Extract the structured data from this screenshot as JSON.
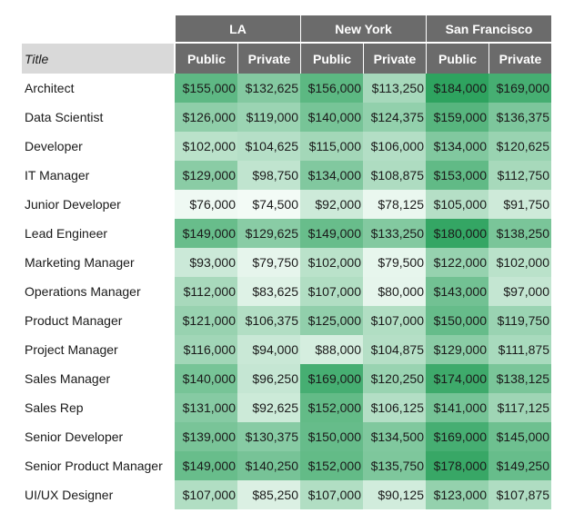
{
  "table": {
    "title_header": "Title",
    "cities": [
      "LA",
      "New York",
      "San Francisco"
    ],
    "sectors": [
      "Public",
      "Private"
    ]
  },
  "chart_data": {
    "type": "heatmap",
    "title": "",
    "row_header": "Title",
    "columns": [
      {
        "city": "LA",
        "sector": "Public"
      },
      {
        "city": "LA",
        "sector": "Private"
      },
      {
        "city": "New York",
        "sector": "Public"
      },
      {
        "city": "New York",
        "sector": "Private"
      },
      {
        "city": "San Francisco",
        "sector": "Public"
      },
      {
        "city": "San Francisco",
        "sector": "Private"
      }
    ],
    "color_scale": {
      "low": "#f3fbf6",
      "high": "#2ea35f"
    },
    "rows": [
      {
        "title": "Architect",
        "values": [
          155000,
          132625,
          156000,
          113250,
          184000,
          169000
        ],
        "labels": [
          "$155,000",
          "$132,625",
          "$156,000",
          "$113,250",
          "$184,000",
          "$169,000"
        ]
      },
      {
        "title": "Data Scientist",
        "values": [
          126000,
          119000,
          140000,
          124375,
          159000,
          136375
        ],
        "labels": [
          "$126,000",
          "$119,000",
          "$140,000",
          "$124,375",
          "$159,000",
          "$136,375"
        ]
      },
      {
        "title": "Developer",
        "values": [
          102000,
          104625,
          115000,
          106000,
          134000,
          120625
        ],
        "labels": [
          "$102,000",
          "$104,625",
          "$115,000",
          "$106,000",
          "$134,000",
          "$120,625"
        ]
      },
      {
        "title": "IT Manager",
        "values": [
          129000,
          98750,
          134000,
          108875,
          153000,
          112750
        ],
        "labels": [
          "$129,000",
          "$98,750",
          "$134,000",
          "$108,875",
          "$153,000",
          "$112,750"
        ]
      },
      {
        "title": "Junior Developer",
        "values": [
          76000,
          74500,
          92000,
          78125,
          105000,
          91750
        ],
        "labels": [
          "$76,000",
          "$74,500",
          "$92,000",
          "$78,125",
          "$105,000",
          "$91,750"
        ]
      },
      {
        "title": "Lead Engineer",
        "values": [
          149000,
          129625,
          149000,
          133250,
          180000,
          138250
        ],
        "labels": [
          "$149,000",
          "$129,625",
          "$149,000",
          "$133,250",
          "$180,000",
          "$138,250"
        ]
      },
      {
        "title": "Marketing Manager",
        "values": [
          93000,
          79750,
          102000,
          79500,
          122000,
          102000
        ],
        "labels": [
          "$93,000",
          "$79,750",
          "$102,000",
          "$79,500",
          "$122,000",
          "$102,000"
        ]
      },
      {
        "title": "Operations Manager",
        "values": [
          112000,
          83625,
          107000,
          80000,
          143000,
          97000
        ],
        "labels": [
          "$112,000",
          "$83,625",
          "$107,000",
          "$80,000",
          "$143,000",
          "$97,000"
        ]
      },
      {
        "title": "Product Manager",
        "values": [
          121000,
          106375,
          125000,
          107000,
          150000,
          119750
        ],
        "labels": [
          "$121,000",
          "$106,375",
          "$125,000",
          "$107,000",
          "$150,000",
          "$119,750"
        ]
      },
      {
        "title": "Project Manager",
        "values": [
          116000,
          94000,
          88000,
          104875,
          129000,
          111875
        ],
        "labels": [
          "$116,000",
          "$94,000",
          "$88,000",
          "$104,875",
          "$129,000",
          "$111,875"
        ]
      },
      {
        "title": "Sales Manager",
        "values": [
          140000,
          96250,
          169000,
          120250,
          174000,
          138125
        ],
        "labels": [
          "$140,000",
          "$96,250",
          "$169,000",
          "$120,250",
          "$174,000",
          "$138,125"
        ]
      },
      {
        "title": "Sales Rep",
        "values": [
          131000,
          92625,
          152000,
          106125,
          141000,
          117125
        ],
        "labels": [
          "$131,000",
          "$92,625",
          "$152,000",
          "$106,125",
          "$141,000",
          "$117,125"
        ]
      },
      {
        "title": "Senior Developer",
        "values": [
          139000,
          130375,
          150000,
          134500,
          169000,
          145000
        ],
        "labels": [
          "$139,000",
          "$130,375",
          "$150,000",
          "$134,500",
          "$169,000",
          "$145,000"
        ]
      },
      {
        "title": "Senior Product Manager",
        "values": [
          149000,
          140250,
          152000,
          135750,
          178000,
          149250
        ],
        "labels": [
          "$149,000",
          "$140,250",
          "$152,000",
          "$135,750",
          "$178,000",
          "$149,250"
        ]
      },
      {
        "title": "UI/UX Designer",
        "values": [
          107000,
          85250,
          107000,
          90125,
          123000,
          107875
        ],
        "labels": [
          "$107,000",
          "$85,250",
          "$107,000",
          "$90,125",
          "$123,000",
          "$107,875"
        ]
      }
    ]
  }
}
